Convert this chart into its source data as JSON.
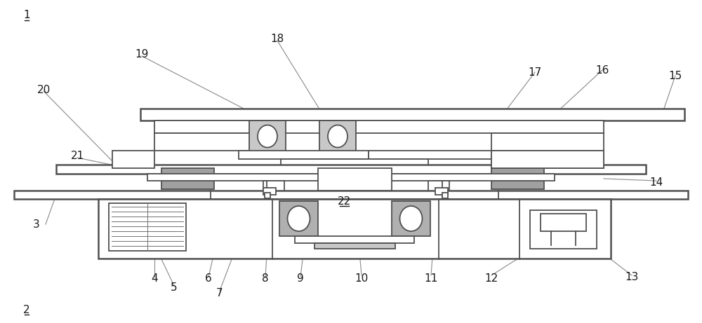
{
  "bg_color": "#ffffff",
  "line_color": "#505050",
  "gray_fill": "#a0a0a0",
  "light_gray": "#c8c8c8",
  "mid_gray": "#b0b0b0",
  "dark_line": "#404040"
}
